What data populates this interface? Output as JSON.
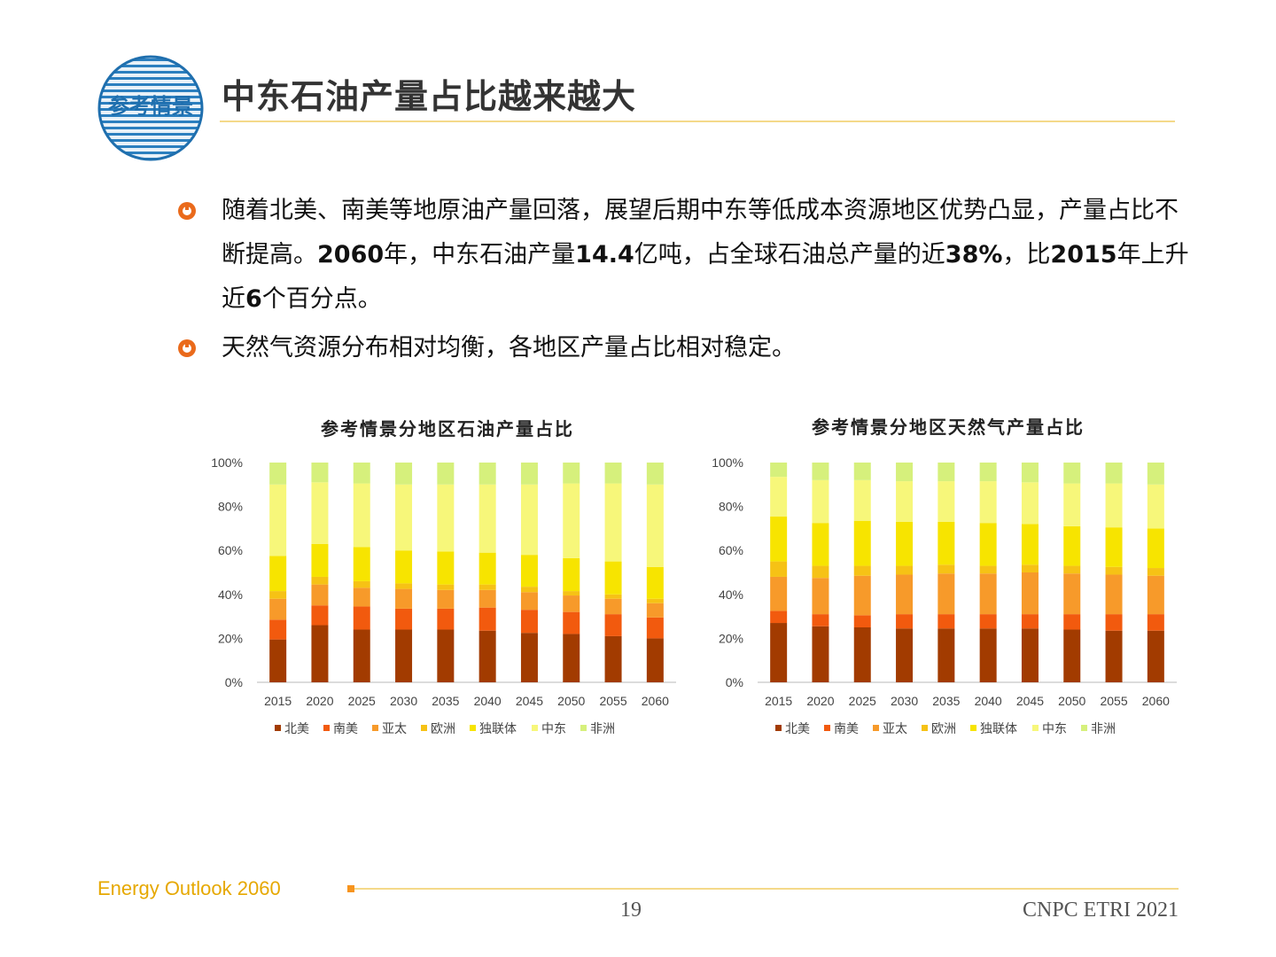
{
  "header": {
    "title": "中东石油产量占比越来越大",
    "logo_text": "参考情景"
  },
  "bullets": [
    {
      "parts": [
        {
          "t": "随着北美、南美等地原油产量回落，展望后期中东等低成本资源地区优势凸显，产量占比不断提高。",
          "b": false
        },
        {
          "t": "2060",
          "b": true
        },
        {
          "t": "年，中东石油产量",
          "b": false
        },
        {
          "t": "14.4",
          "b": true
        },
        {
          "t": "亿吨，占全球石油总产量的近",
          "b": false
        },
        {
          "t": "38%",
          "b": true
        },
        {
          "t": "，比",
          "b": false
        },
        {
          "t": "2015",
          "b": true
        },
        {
          "t": "年上升近",
          "b": false
        },
        {
          "t": "6",
          "b": true
        },
        {
          "t": "个百分点。",
          "b": false
        }
      ]
    },
    {
      "parts": [
        {
          "t": "天然气资源分布相对均衡，各地区产量占比相对稳定。",
          "b": false
        }
      ]
    }
  ],
  "colors": {
    "accent": "#f7941d",
    "rule": "#f4d98a",
    "footer_text": "#e6a800",
    "series": [
      "#a23b00",
      "#f25a0e",
      "#f79a2a",
      "#f6c215",
      "#f7e400",
      "#f7f77a",
      "#d6f07c"
    ]
  },
  "chart_data": [
    {
      "type": "bar",
      "stacked": true,
      "title": "参考情景分地区石油产量占比",
      "categories": [
        "2015",
        "2020",
        "2025",
        "2030",
        "2035",
        "2040",
        "2045",
        "2050",
        "2055",
        "2060"
      ],
      "ylim": [
        0,
        100
      ],
      "yticks": [
        "0%",
        "20%",
        "40%",
        "60%",
        "80%",
        "100%"
      ],
      "legend_position": "bottom",
      "series": [
        {
          "name": "北美",
          "values": [
            19.5,
            26,
            24,
            24,
            24,
            23.5,
            22.5,
            22,
            21,
            20
          ]
        },
        {
          "name": "南美",
          "values": [
            9,
            9,
            10.5,
            9.5,
            9.5,
            10.5,
            10.5,
            10,
            10,
            9.5
          ]
        },
        {
          "name": "亚太",
          "values": [
            9.5,
            9.5,
            8.5,
            9,
            8.5,
            8,
            8,
            7.5,
            7,
            6.5
          ]
        },
        {
          "name": "欧洲",
          "values": [
            3.5,
            3.5,
            3,
            2.5,
            2.5,
            2.5,
            2.5,
            2,
            2,
            2
          ]
        },
        {
          "name": "独联体",
          "values": [
            16,
            15,
            15.5,
            15,
            15,
            14.5,
            14.5,
            15,
            15,
            14.5
          ]
        },
        {
          "name": "中东",
          "values": [
            32.5,
            28,
            29,
            30,
            30.5,
            31,
            32,
            34,
            35.5,
            37.5
          ]
        },
        {
          "name": "非洲",
          "values": [
            10,
            9,
            9.5,
            10,
            10,
            10,
            10,
            9.5,
            9.5,
            10
          ]
        }
      ]
    },
    {
      "type": "bar",
      "stacked": true,
      "title": "参考情景分地区天然气产量占比",
      "categories": [
        "2015",
        "2020",
        "2025",
        "2030",
        "2035",
        "2040",
        "2045",
        "2050",
        "2055",
        "2060"
      ],
      "ylim": [
        0,
        100
      ],
      "yticks": [
        "0%",
        "20%",
        "40%",
        "60%",
        "80%",
        "100%"
      ],
      "legend_position": "bottom",
      "series": [
        {
          "name": "北美",
          "values": [
            27,
            25.5,
            25,
            24.5,
            24.5,
            24.5,
            24.5,
            24,
            23.5,
            23.5
          ]
        },
        {
          "name": "南美",
          "values": [
            5.5,
            5.5,
            5.5,
            6.5,
            6.5,
            6.5,
            6.5,
            7,
            7.5,
            7.5
          ]
        },
        {
          "name": "亚太",
          "values": [
            15.5,
            16.5,
            18,
            18,
            18.5,
            18.5,
            19,
            18.5,
            18,
            17.5
          ]
        },
        {
          "name": "欧洲",
          "values": [
            7,
            5.5,
            4.5,
            4,
            4,
            3.5,
            3.5,
            3.5,
            3.5,
            3.5
          ]
        },
        {
          "name": "独联体",
          "values": [
            20.5,
            19.5,
            20.5,
            20,
            19.5,
            19.5,
            18.5,
            18,
            18,
            18
          ]
        },
        {
          "name": "中东",
          "values": [
            18,
            19.5,
            18.5,
            18.5,
            18.5,
            19,
            19,
            19.5,
            20,
            20
          ]
        },
        {
          "name": "非洲",
          "values": [
            6.5,
            8,
            8,
            8.5,
            8.5,
            8.5,
            9,
            9.5,
            9.5,
            10
          ]
        }
      ]
    }
  ],
  "footer": {
    "left": "Energy Outlook 2060",
    "page": "19",
    "org": "CNPC ETRI 2021"
  }
}
